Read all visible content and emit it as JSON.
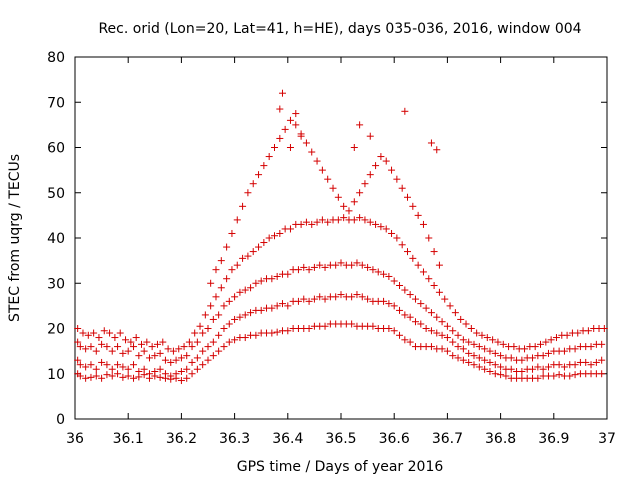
{
  "chart_data": {
    "type": "scatter",
    "title": "Rec. orid (Lon=20, Lat=41, h=HE), days 035-036, 2016, window 004",
    "xlabel": "GPS time / Days of year 2016",
    "ylabel": "STEC from uqrg / TECUs",
    "xlim": [
      36,
      37
    ],
    "ylim": [
      0,
      80
    ],
    "xticks": [
      36,
      36.1,
      36.2,
      36.3,
      36.4,
      36.5,
      36.6,
      36.7,
      36.8,
      36.9,
      37
    ],
    "xtick_labels": [
      "36",
      "36.1",
      "36.2",
      "36.3",
      "36.4",
      "36.5",
      "36.6",
      "36.7",
      "36.8",
      "36.9",
      "37"
    ],
    "yticks": [
      0,
      10,
      20,
      30,
      40,
      50,
      60,
      70,
      80
    ],
    "ytick_labels": [
      "0",
      "10",
      "20",
      "30",
      "40",
      "50",
      "60",
      "70",
      "80"
    ],
    "grid": false,
    "marker": "plus",
    "color": "#d40000",
    "series": [
      {
        "x": [
          36.005,
          36.01,
          36.02,
          36.03,
          36.04,
          36.05,
          36.06,
          36.07,
          36.08,
          36.09,
          36.1,
          36.11,
          36.12,
          36.13,
          36.14,
          36.15,
          36.16,
          36.17,
          36.18,
          36.19,
          36.2,
          36.21,
          36.22,
          36.23,
          36.24,
          36.25,
          36.26,
          36.27,
          36.28,
          36.29,
          36.3,
          36.31,
          36.32,
          36.33,
          36.34,
          36.35,
          36.36,
          36.37,
          36.38,
          36.39,
          36.4,
          36.41,
          36.42,
          36.43,
          36.44,
          36.45,
          36.46,
          36.47,
          36.48,
          36.49,
          36.5,
          36.51,
          36.52,
          36.53,
          36.54,
          36.55,
          36.56,
          36.57,
          36.58,
          36.59,
          36.6,
          36.61,
          36.62,
          36.63,
          36.64,
          36.65,
          36.66,
          36.67,
          36.68,
          36.69,
          36.7,
          36.71,
          36.72,
          36.73,
          36.74,
          36.75,
          36.76,
          36.77,
          36.78,
          36.79,
          36.8,
          36.81,
          36.82,
          36.83,
          36.84,
          36.85,
          36.86,
          36.87,
          36.88,
          36.89,
          36.9,
          36.91,
          36.92,
          36.93,
          36.94,
          36.95,
          36.96,
          36.97,
          36.98,
          36.99
        ],
        "y": [
          10,
          9.5,
          9,
          9.2,
          9.5,
          9,
          9.8,
          9.5,
          10,
          9.2,
          9.5,
          9,
          9.3,
          9.8,
          9,
          9.5,
          9.2,
          9,
          8.8,
          9,
          8.5,
          9,
          10,
          11,
          12,
          13,
          14,
          15,
          16,
          17,
          17.5,
          18,
          18,
          18.5,
          18.5,
          19,
          19,
          19,
          19.2,
          19.5,
          19.5,
          20,
          20,
          20,
          20,
          20.5,
          20.5,
          20.5,
          21,
          21,
          21,
          21,
          21,
          20.5,
          20.5,
          20.5,
          20.5,
          20,
          20,
          20,
          19.5,
          18.5,
          17.5,
          17,
          16,
          16,
          16,
          16,
          15.5,
          15.5,
          15,
          14,
          13.5,
          13,
          12.5,
          12,
          11.5,
          11,
          10.5,
          10,
          9.8,
          9.5,
          9,
          9,
          9,
          9,
          9,
          9,
          9.5,
          9.5,
          9.5,
          9.8,
          9.5,
          9.5,
          9.8,
          10,
          10,
          10,
          10,
          10
        ]
      },
      {
        "x": [
          36.005,
          36.01,
          36.02,
          36.03,
          36.04,
          36.05,
          36.06,
          36.07,
          36.08,
          36.09,
          36.1,
          36.11,
          36.12,
          36.13,
          36.14,
          36.15,
          36.16,
          36.17,
          36.18,
          36.19,
          36.2,
          36.21,
          36.22,
          36.23,
          36.24,
          36.25,
          36.26,
          36.27,
          36.28,
          36.29,
          36.3,
          36.31,
          36.32,
          36.33,
          36.34,
          36.35,
          36.36,
          36.37,
          36.38,
          36.39,
          36.4,
          36.41,
          36.42,
          36.43,
          36.44,
          36.45,
          36.46,
          36.47,
          36.48,
          36.49,
          36.5,
          36.51,
          36.52,
          36.53,
          36.54,
          36.55,
          36.56,
          36.57,
          36.58,
          36.59,
          36.6,
          36.61,
          36.62,
          36.63,
          36.64,
          36.65,
          36.66,
          36.67,
          36.68,
          36.69,
          36.7,
          36.71,
          36.72,
          36.73,
          36.74,
          36.75,
          36.76,
          36.77,
          36.78,
          36.79,
          36.8,
          36.81,
          36.82,
          36.83,
          36.84,
          36.85,
          36.86,
          36.87,
          36.88,
          36.89,
          36.9,
          36.91,
          36.92,
          36.93,
          36.94,
          36.95,
          36.96,
          36.97,
          36.98,
          36.99
        ],
        "y": [
          13,
          12,
          11.5,
          12,
          11,
          12.5,
          12,
          11,
          12,
          11.5,
          11,
          12,
          10.5,
          11,
          10,
          10.5,
          11,
          10,
          9.5,
          10,
          10.5,
          11,
          12.5,
          13.5,
          15,
          16,
          17,
          18.5,
          20,
          21,
          22,
          22.5,
          23,
          23.5,
          24,
          24,
          24.5,
          24.5,
          25,
          25.5,
          25,
          26,
          26,
          26.5,
          26,
          26.5,
          27,
          26.5,
          27,
          27,
          27.5,
          27,
          27,
          27.5,
          27,
          26.5,
          26,
          26,
          26,
          25.5,
          25,
          24,
          23,
          22.5,
          21.5,
          21,
          20,
          19.5,
          19,
          18.5,
          18,
          17,
          16,
          15.5,
          14.5,
          14,
          13.5,
          13,
          12.5,
          12,
          11.5,
          11,
          11,
          10.5,
          10.5,
          11,
          11,
          11.5,
          11,
          11.5,
          12,
          12,
          11.5,
          12,
          12,
          12.5,
          12.5,
          12,
          12.5,
          13
        ]
      },
      {
        "x": [
          36.005,
          36.01,
          36.02,
          36.03,
          36.04,
          36.05,
          36.06,
          36.07,
          36.08,
          36.09,
          36.1,
          36.11,
          36.12,
          36.13,
          36.14,
          36.15,
          36.16,
          36.17,
          36.18,
          36.19,
          36.2,
          36.21,
          36.22,
          36.23,
          36.24,
          36.25,
          36.26,
          36.27,
          36.28,
          36.29,
          36.3,
          36.31,
          36.32,
          36.33,
          36.34,
          36.35,
          36.36,
          36.37,
          36.38,
          36.39,
          36.4,
          36.41,
          36.42,
          36.43,
          36.44,
          36.45,
          36.46,
          36.47,
          36.48,
          36.49,
          36.5,
          36.51,
          36.52,
          36.53,
          36.54,
          36.55,
          36.56,
          36.57,
          36.58,
          36.59,
          36.6,
          36.61,
          36.62,
          36.63,
          36.64,
          36.65,
          36.66,
          36.67,
          36.68,
          36.69,
          36.7,
          36.71,
          36.72,
          36.73,
          36.74,
          36.75,
          36.76,
          36.77,
          36.78,
          36.79,
          36.8,
          36.81,
          36.82,
          36.83,
          36.84,
          36.85,
          36.86,
          36.87,
          36.88,
          36.89,
          36.9,
          36.91,
          36.92,
          36.93,
          36.94,
          36.95,
          36.96,
          36.97,
          36.98,
          36.99
        ],
        "y": [
          17,
          16,
          15.5,
          16,
          15,
          16.5,
          16,
          15,
          16,
          14.5,
          15,
          16,
          14,
          15,
          13.5,
          14,
          14.5,
          13,
          12.5,
          13,
          13.5,
          14,
          16,
          17,
          19,
          20,
          22,
          23,
          25,
          26,
          27,
          28,
          28.5,
          29,
          30,
          30.5,
          31,
          31,
          31.5,
          32,
          32,
          33,
          33,
          33.5,
          33,
          33.5,
          34,
          33.5,
          34,
          34,
          34.5,
          34,
          34,
          34.5,
          34,
          33.5,
          33,
          32.5,
          32,
          31.5,
          30.5,
          29.5,
          28.5,
          27.5,
          26.5,
          25.5,
          24.5,
          23.5,
          22.5,
          21.5,
          20.5,
          19.5,
          18.5,
          17.5,
          17,
          16.5,
          16,
          15.5,
          15,
          14.5,
          14,
          13.5,
          13.5,
          13,
          13,
          13.5,
          13.5,
          14,
          14,
          14.5,
          15,
          15,
          15,
          15.5,
          15.5,
          16,
          16,
          16,
          16.5,
          16.5
        ]
      },
      {
        "x": [
          36.005,
          36.015,
          36.025,
          36.035,
          36.045,
          36.055,
          36.065,
          36.075,
          36.085,
          36.095,
          36.105,
          36.115,
          36.125,
          36.135,
          36.145,
          36.155,
          36.165,
          36.175,
          36.185,
          36.195,
          36.205,
          36.215,
          36.225,
          36.235,
          36.245,
          36.255,
          36.265,
          36.275,
          36.285,
          36.295,
          36.305,
          36.315,
          36.325,
          36.335,
          36.345,
          36.355,
          36.365,
          36.375,
          36.385,
          36.395,
          36.405,
          36.415,
          36.425,
          36.435,
          36.445,
          36.455,
          36.465,
          36.475,
          36.485,
          36.495,
          36.505,
          36.515,
          36.525,
          36.535,
          36.545,
          36.555,
          36.565,
          36.575,
          36.585,
          36.595,
          36.605,
          36.615,
          36.625,
          36.635,
          36.645,
          36.655,
          36.665,
          36.675,
          36.685,
          36.695,
          36.705,
          36.715,
          36.725,
          36.735,
          36.745,
          36.755,
          36.765,
          36.775,
          36.785,
          36.795,
          36.805,
          36.815,
          36.825,
          36.835,
          36.845,
          36.855,
          36.865,
          36.875,
          36.885,
          36.895,
          36.905,
          36.915,
          36.925,
          36.935,
          36.945,
          36.955,
          36.965,
          36.975,
          36.985,
          36.995
        ],
        "y": [
          20,
          19,
          18.5,
          19,
          18,
          19.5,
          19,
          18,
          19,
          17.5,
          17,
          18,
          16.5,
          17,
          16,
          16.5,
          17,
          15.5,
          15,
          15.5,
          16,
          17,
          19,
          20.5,
          23,
          25,
          27,
          29,
          31,
          33,
          34,
          35.5,
          36,
          37,
          38,
          39,
          40,
          40.5,
          41,
          42,
          42,
          43,
          43,
          43.5,
          43,
          43.5,
          44,
          43.5,
          44,
          44,
          44.5,
          44,
          44,
          44.5,
          44,
          43.5,
          43,
          42.5,
          42,
          41,
          40,
          38.5,
          37,
          35.5,
          34,
          32.5,
          31,
          29.5,
          28,
          26.5,
          25,
          23.5,
          22,
          21,
          20,
          19,
          18.5,
          18,
          17.5,
          17,
          16.5,
          16,
          16,
          15.5,
          15.5,
          16,
          16,
          16.5,
          17,
          17.5,
          18,
          18.5,
          18.5,
          19,
          19,
          19.5,
          19.5,
          20,
          20,
          20
        ]
      },
      {
        "x": [
          36.255,
          36.265,
          36.275,
          36.285,
          36.295,
          36.305,
          36.315,
          36.325,
          36.335,
          36.345,
          36.355,
          36.365,
          36.375,
          36.385,
          36.395,
          36.405,
          36.415,
          36.425,
          36.435,
          36.445,
          36.455,
          36.465,
          36.475,
          36.485,
          36.495,
          36.505,
          36.515,
          36.525,
          36.535,
          36.545,
          36.555,
          36.565,
          36.575,
          36.585,
          36.595,
          36.605,
          36.615,
          36.625,
          36.635,
          36.645,
          36.655,
          36.665,
          36.675,
          36.685
        ],
        "y": [
          30,
          33,
          35,
          38,
          41,
          44,
          47,
          50,
          52,
          54,
          56,
          58,
          60,
          62,
          64,
          66,
          65,
          63,
          61,
          59,
          57,
          55,
          53,
          51,
          49,
          47,
          46,
          48,
          50,
          52,
          54,
          56,
          58,
          57,
          55,
          53,
          51,
          49,
          47,
          45,
          43,
          40,
          37,
          34
        ]
      },
      {
        "x": [
          36.385,
          36.39,
          36.405,
          36.415,
          36.425,
          36.525,
          36.535,
          36.555,
          36.62,
          36.67,
          36.68
        ],
        "y": [
          68.5,
          72,
          60,
          67.5,
          62.5,
          60,
          65,
          62.5,
          68,
          61,
          59.5
        ]
      }
    ]
  }
}
